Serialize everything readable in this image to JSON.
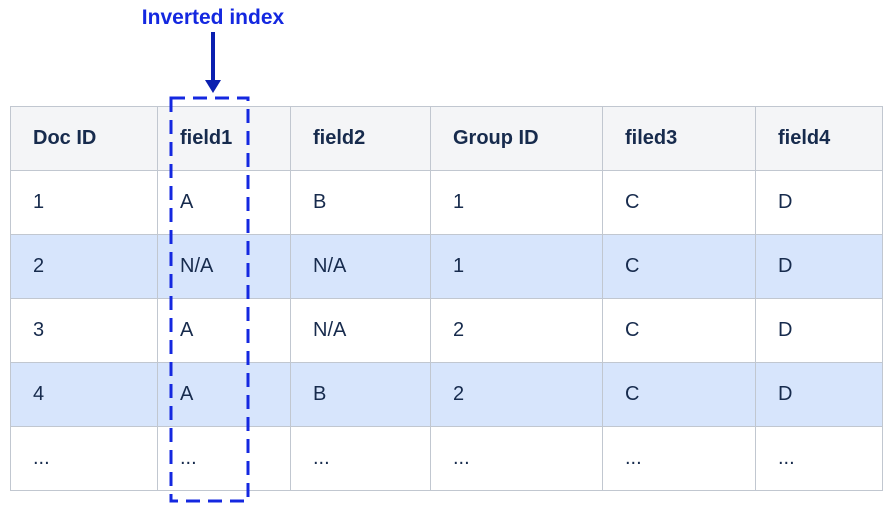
{
  "annotation": {
    "label": "Inverted index"
  },
  "table": {
    "header": [
      "Doc ID",
      "field1",
      "field2",
      "Group ID",
      "filed3",
      "field4"
    ],
    "rows": [
      [
        "1",
        "A",
        "B",
        "1",
        "C",
        "D"
      ],
      [
        "2",
        "N/A",
        "N/A",
        "1",
        "C",
        "D"
      ],
      [
        "3",
        "A",
        "N/A",
        "2",
        "C",
        "D"
      ],
      [
        "4",
        "A",
        "B",
        "2",
        "C",
        "D"
      ],
      [
        "...",
        "...",
        "...",
        "...",
        "...",
        "..."
      ]
    ]
  }
}
